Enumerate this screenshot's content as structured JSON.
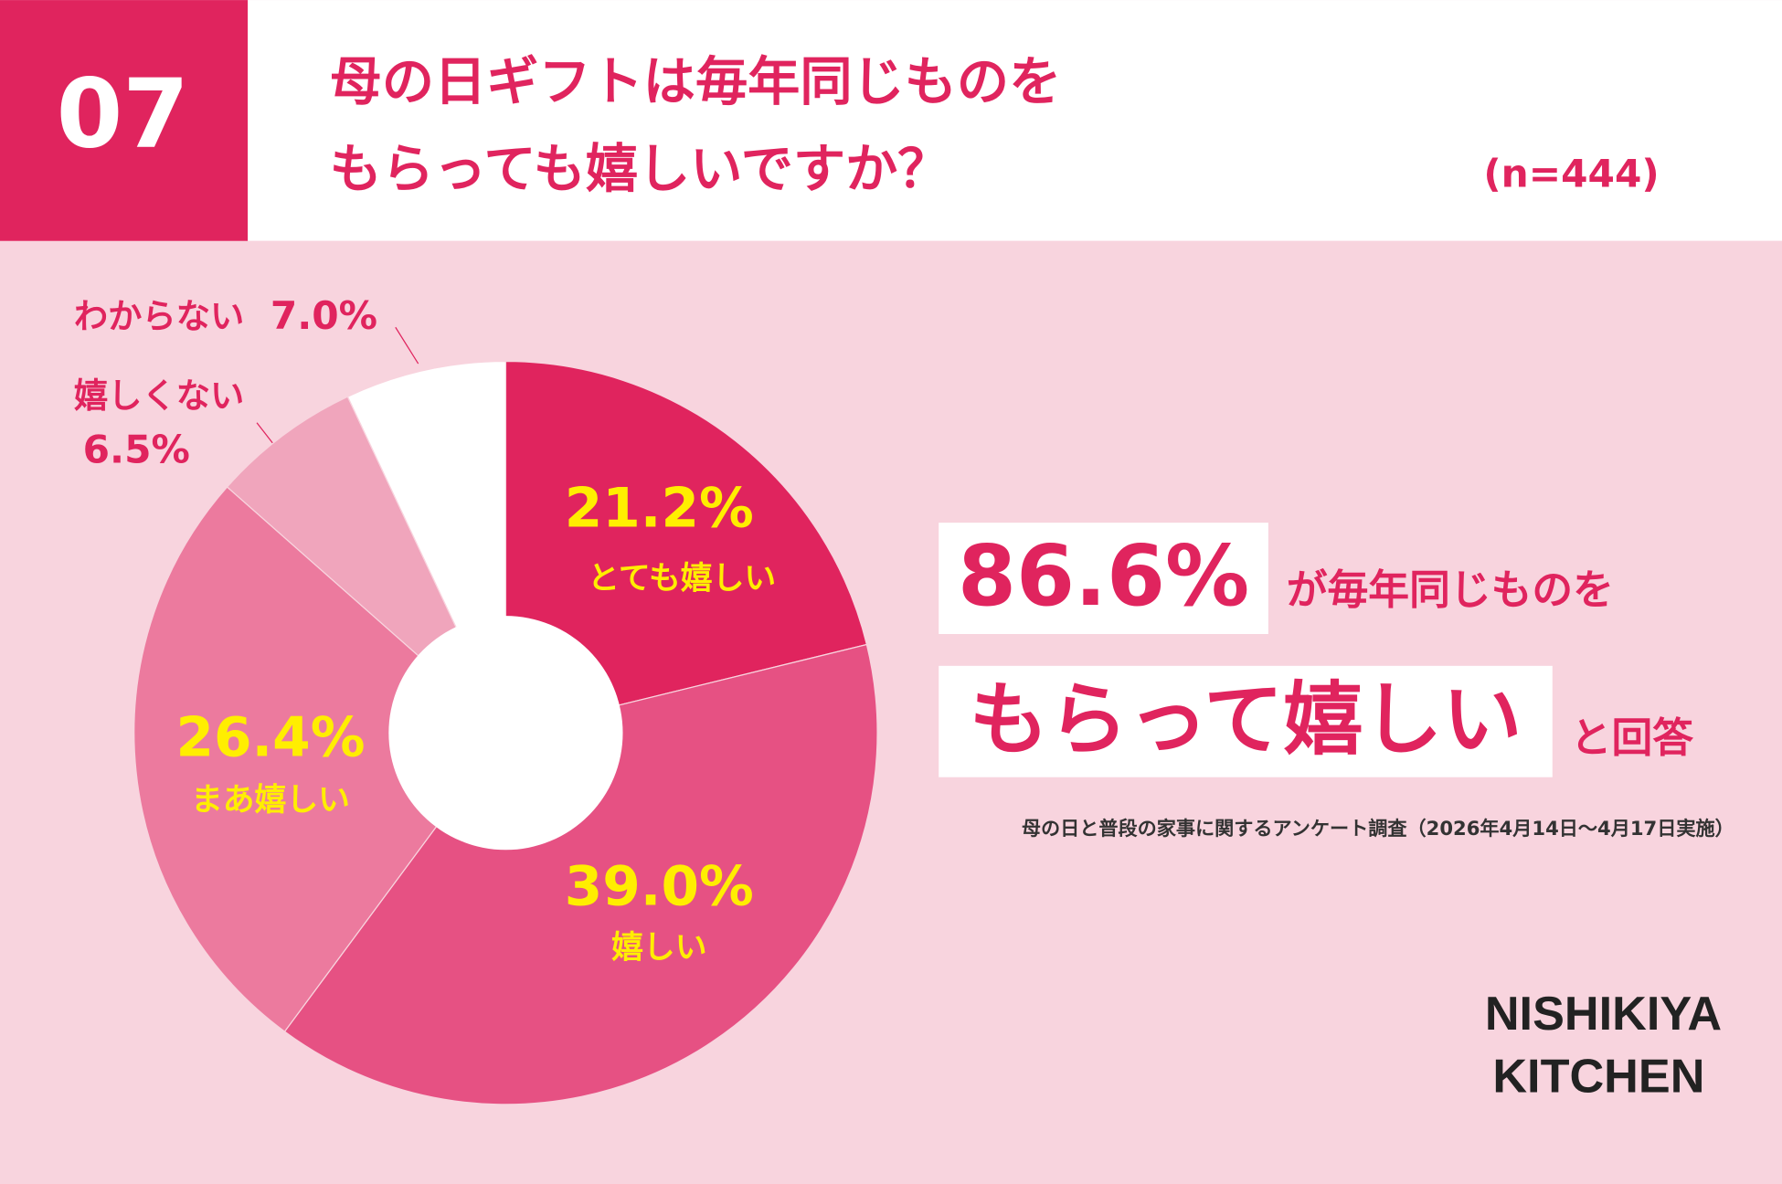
{
  "chart_data": {
    "type": "pie",
    "title": [
      "母の日ギフトは毎年同じものを",
      "もらっても嬉しいですか？"
    ],
    "number": "07",
    "sample": "(n=444)",
    "categories": [
      "とても嬉しい",
      "嬉しい",
      "まあ嬉しい",
      "嬉しくない",
      "わからない"
    ],
    "values": [
      21.2,
      39.0,
      26.4,
      6.5,
      7.0
    ],
    "value_labels": [
      "21.2%",
      "39.0%",
      "26.4%",
      "6.5%",
      "7.0%"
    ],
    "colors": [
      "#e0245e",
      "#e65183",
      "#ec7a9e",
      "#f0a5bc",
      "#ffffff"
    ],
    "headline": {
      "figure": "86.6%",
      "text1": "が毎年同じものを",
      "highlight": "もらって嬉しい",
      "text2": "と回答"
    },
    "source": "母の日と普段の家事に関するアンケート調査（2026年4月14日〜4月17日実施）",
    "brand": [
      "NISHIKIYA",
      "KITCHEN"
    ]
  }
}
